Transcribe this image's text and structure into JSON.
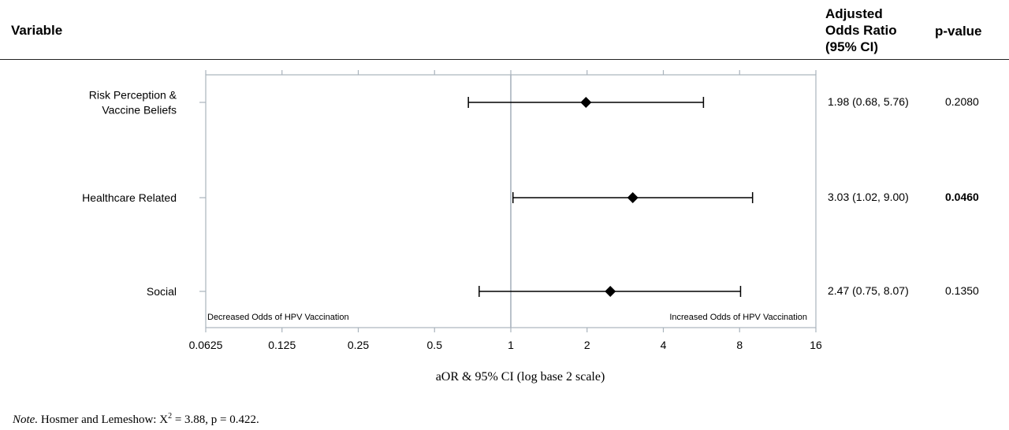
{
  "header": {
    "variable": "Variable",
    "aor_line1": "Adjusted",
    "aor_line2": "Odds Ratio",
    "aor_line3": "(95% CI)",
    "pvalue": "p-value"
  },
  "chart_data": {
    "type": "forest",
    "xlabel": "aOR & 95% CI (log base 2 scale)",
    "x_scale": "log2",
    "xlim": [
      0.0625,
      16
    ],
    "x_ticks": [
      0.0625,
      0.125,
      0.25,
      0.5,
      1,
      2,
      4,
      8,
      16
    ],
    "x_tick_labels": [
      "0.0625",
      "0.125",
      "0.25",
      "0.5",
      "1",
      "2",
      "4",
      "8",
      "16"
    ],
    "reference_line": 1,
    "left_annotation": "Decreased Odds of HPV Vaccination",
    "right_annotation": "Increased Odds of HPV Vaccination",
    "rows": [
      {
        "label_lines": [
          "Risk Perception &",
          "Vaccine Beliefs"
        ],
        "aor": 1.98,
        "ci_low": 0.68,
        "ci_high": 5.76,
        "ci_text": "1.98 (0.68, 5.76)",
        "p": "0.2080",
        "significant": false
      },
      {
        "label_lines": [
          "Healthcare Related"
        ],
        "aor": 3.03,
        "ci_low": 1.02,
        "ci_high": 9.0,
        "ci_text": "3.03 (1.02, 9.00)",
        "p": "0.0460",
        "significant": true
      },
      {
        "label_lines": [
          "Social"
        ],
        "aor": 2.47,
        "ci_low": 0.75,
        "ci_high": 8.07,
        "ci_text": "2.47 (0.75, 8.07)",
        "p": "0.1350",
        "significant": false
      }
    ]
  },
  "note": {
    "label": "Note.",
    "text_before": " Hosmer and Lemeshow: X",
    "sup": "2",
    "text_after": " = 3.88, p = 0.422."
  },
  "colors": {
    "axis_frame": "#a9b3bc",
    "ref_line": "#a9b3bc",
    "marker": "#000000"
  }
}
